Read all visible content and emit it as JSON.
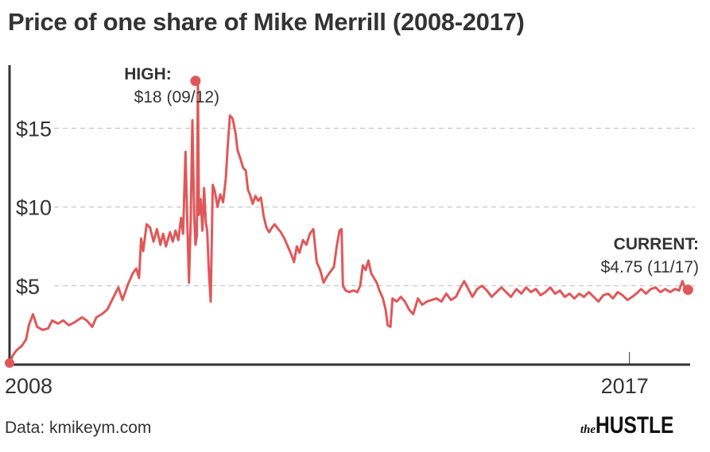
{
  "title": "Price of one share of Mike Merrill (2008-2017)",
  "source": "Data: kmikeym.com",
  "brand": {
    "prefix": "the",
    "name": "HUSTLE"
  },
  "colors": {
    "line": "#e15759",
    "grid": "#bbbbbb",
    "axis": "#333333",
    "text": "#333333"
  },
  "chart_data": {
    "type": "line",
    "title": "Price of one share of Mike Merrill (2008-2017)",
    "xlabel": "",
    "ylabel": "",
    "xlim": [
      2008.0,
      2017.95
    ],
    "ylim": [
      0,
      19
    ],
    "y_ticks": [
      {
        "value": 5,
        "label": "$5"
      },
      {
        "value": 10,
        "label": "$10"
      },
      {
        "value": 15,
        "label": "$15"
      }
    ],
    "x_ticks": [
      {
        "value": 2008.0,
        "label": "2008"
      },
      {
        "value": 2017.0,
        "label": "2017"
      }
    ],
    "grid": true,
    "annotations": [
      {
        "x": 2010.7,
        "y": 18,
        "heading": "HIGH:",
        "label": "$18 (09/12)"
      },
      {
        "x": 2017.85,
        "y": 4.75,
        "heading": "CURRENT:",
        "label": "$4.75 (11/17)"
      }
    ],
    "series": [
      {
        "points": [
          [
            2008.0,
            0.1
          ],
          [
            2008.05,
            0.6
          ],
          [
            2008.1,
            0.9
          ],
          [
            2008.18,
            1.2
          ],
          [
            2008.24,
            1.6
          ],
          [
            2008.28,
            2.5
          ],
          [
            2008.34,
            3.2
          ],
          [
            2008.4,
            2.4
          ],
          [
            2008.48,
            2.2
          ],
          [
            2008.56,
            2.3
          ],
          [
            2008.62,
            2.8
          ],
          [
            2008.7,
            2.6
          ],
          [
            2008.78,
            2.8
          ],
          [
            2008.86,
            2.5
          ],
          [
            2008.95,
            2.7
          ],
          [
            2009.05,
            3.0
          ],
          [
            2009.12,
            2.8
          ],
          [
            2009.2,
            2.4
          ],
          [
            2009.26,
            3.0
          ],
          [
            2009.34,
            3.2
          ],
          [
            2009.42,
            3.5
          ],
          [
            2009.5,
            4.2
          ],
          [
            2009.58,
            4.9
          ],
          [
            2009.64,
            4.1
          ],
          [
            2009.72,
            5.1
          ],
          [
            2009.79,
            5.8
          ],
          [
            2009.84,
            6.1
          ],
          [
            2009.88,
            5.5
          ],
          [
            2009.91,
            8.0
          ],
          [
            2009.94,
            7.2
          ],
          [
            2009.99,
            8.9
          ],
          [
            2010.04,
            8.7
          ],
          [
            2010.09,
            7.8
          ],
          [
            2010.14,
            8.6
          ],
          [
            2010.19,
            7.6
          ],
          [
            2010.23,
            8.3
          ],
          [
            2010.27,
            7.5
          ],
          [
            2010.33,
            8.4
          ],
          [
            2010.37,
            7.8
          ],
          [
            2010.41,
            8.5
          ],
          [
            2010.45,
            7.9
          ],
          [
            2010.49,
            9.3
          ],
          [
            2010.52,
            8.3
          ],
          [
            2010.555,
            13.5
          ],
          [
            2010.58,
            9.2
          ],
          [
            2010.605,
            5.2
          ],
          [
            2010.63,
            9.0
          ],
          [
            2010.655,
            15.5
          ],
          [
            2010.68,
            9.5
          ],
          [
            2010.7,
            7.6
          ],
          [
            2010.72,
            8.2
          ],
          [
            2010.735,
            18.0
          ],
          [
            2010.75,
            9.5
          ],
          [
            2010.775,
            10.5
          ],
          [
            2010.8,
            8.5
          ],
          [
            2010.825,
            11.2
          ],
          [
            2010.85,
            9.0
          ],
          [
            2010.87,
            8.5
          ],
          [
            2010.895,
            5.8
          ],
          [
            2010.92,
            4.0
          ],
          [
            2010.95,
            11.4
          ],
          [
            2010.98,
            11.0
          ],
          [
            2011.02,
            10.0
          ],
          [
            2011.06,
            10.8
          ],
          [
            2011.1,
            10.3
          ],
          [
            2011.14,
            11.8
          ],
          [
            2011.17,
            14.0
          ],
          [
            2011.2,
            15.8
          ],
          [
            2011.24,
            15.6
          ],
          [
            2011.28,
            14.7
          ],
          [
            2011.31,
            13.6
          ],
          [
            2011.35,
            13.1
          ],
          [
            2011.39,
            12.5
          ],
          [
            2011.43,
            12.3
          ],
          [
            2011.46,
            11.1
          ],
          [
            2011.49,
            10.8
          ],
          [
            2011.53,
            10.2
          ],
          [
            2011.57,
            10.7
          ],
          [
            2011.61,
            10.4
          ],
          [
            2011.65,
            10.6
          ],
          [
            2011.69,
            9.4
          ],
          [
            2011.73,
            8.7
          ],
          [
            2011.77,
            8.4
          ],
          [
            2011.81,
            8.7
          ],
          [
            2011.85,
            8.9
          ],
          [
            2011.9,
            8.6
          ],
          [
            2011.94,
            8.4
          ],
          [
            2011.99,
            8.0
          ],
          [
            2012.04,
            7.5
          ],
          [
            2012.09,
            7.0
          ],
          [
            2012.13,
            6.5
          ],
          [
            2012.17,
            7.5
          ],
          [
            2012.21,
            7.1
          ],
          [
            2012.26,
            7.9
          ],
          [
            2012.31,
            7.6
          ],
          [
            2012.36,
            8.3
          ],
          [
            2012.41,
            8.6
          ],
          [
            2012.46,
            6.5
          ],
          [
            2012.51,
            6.0
          ],
          [
            2012.56,
            5.2
          ],
          [
            2012.61,
            5.6
          ],
          [
            2012.66,
            5.9
          ],
          [
            2012.71,
            6.2
          ],
          [
            2012.75,
            7.5
          ],
          [
            2012.79,
            8.5
          ],
          [
            2012.82,
            8.6
          ],
          [
            2012.84,
            5.0
          ],
          [
            2012.88,
            4.7
          ],
          [
            2012.93,
            4.6
          ],
          [
            2012.99,
            4.7
          ],
          [
            2013.05,
            4.6
          ],
          [
            2013.09,
            5.0
          ],
          [
            2013.13,
            6.3
          ],
          [
            2013.17,
            6.0
          ],
          [
            2013.21,
            6.6
          ],
          [
            2013.25,
            5.8
          ],
          [
            2013.29,
            5.5
          ],
          [
            2013.33,
            5.2
          ],
          [
            2013.37,
            4.7
          ],
          [
            2013.42,
            4.2
          ],
          [
            2013.46,
            3.5
          ],
          [
            2013.49,
            2.5
          ],
          [
            2013.53,
            2.4
          ],
          [
            2013.56,
            4.2
          ],
          [
            2013.62,
            4.0
          ],
          [
            2013.68,
            4.3
          ],
          [
            2013.74,
            4.0
          ],
          [
            2013.8,
            3.5
          ],
          [
            2013.86,
            3.2
          ],
          [
            2013.93,
            4.2
          ],
          [
            2013.99,
            3.8
          ],
          [
            2014.06,
            4.0
          ],
          [
            2014.13,
            4.1
          ],
          [
            2014.2,
            4.2
          ],
          [
            2014.27,
            4.0
          ],
          [
            2014.34,
            4.5
          ],
          [
            2014.41,
            4.1
          ],
          [
            2014.48,
            4.3
          ],
          [
            2014.55,
            4.9
          ],
          [
            2014.6,
            5.3
          ],
          [
            2014.66,
            4.8
          ],
          [
            2014.72,
            4.3
          ],
          [
            2014.79,
            4.8
          ],
          [
            2014.86,
            5.0
          ],
          [
            2014.93,
            4.7
          ],
          [
            2015.0,
            4.3
          ],
          [
            2015.07,
            4.6
          ],
          [
            2015.14,
            4.9
          ],
          [
            2015.21,
            4.6
          ],
          [
            2015.28,
            4.3
          ],
          [
            2015.36,
            4.8
          ],
          [
            2015.43,
            4.5
          ],
          [
            2015.5,
            4.9
          ],
          [
            2015.57,
            4.6
          ],
          [
            2015.64,
            4.8
          ],
          [
            2015.71,
            4.4
          ],
          [
            2015.78,
            4.6
          ],
          [
            2015.85,
            4.9
          ],
          [
            2015.92,
            4.5
          ],
          [
            2015.99,
            4.7
          ],
          [
            2016.06,
            4.3
          ],
          [
            2016.13,
            4.5
          ],
          [
            2016.2,
            4.2
          ],
          [
            2016.27,
            4.5
          ],
          [
            2016.34,
            4.3
          ],
          [
            2016.41,
            4.6
          ],
          [
            2016.48,
            4.3
          ],
          [
            2016.55,
            4.0
          ],
          [
            2016.62,
            4.4
          ],
          [
            2016.69,
            4.5
          ],
          [
            2016.76,
            4.2
          ],
          [
            2016.83,
            4.6
          ],
          [
            2016.9,
            4.4
          ],
          [
            2016.97,
            4.1
          ],
          [
            2017.04,
            4.3
          ],
          [
            2017.1,
            4.5
          ],
          [
            2017.17,
            4.8
          ],
          [
            2017.24,
            4.5
          ],
          [
            2017.31,
            4.8
          ],
          [
            2017.38,
            4.9
          ],
          [
            2017.45,
            4.6
          ],
          [
            2017.52,
            4.8
          ],
          [
            2017.59,
            4.6
          ],
          [
            2017.66,
            4.8
          ],
          [
            2017.72,
            4.7
          ],
          [
            2017.77,
            5.3
          ],
          [
            2017.8,
            4.9
          ],
          [
            2017.85,
            4.75
          ]
        ]
      }
    ]
  }
}
